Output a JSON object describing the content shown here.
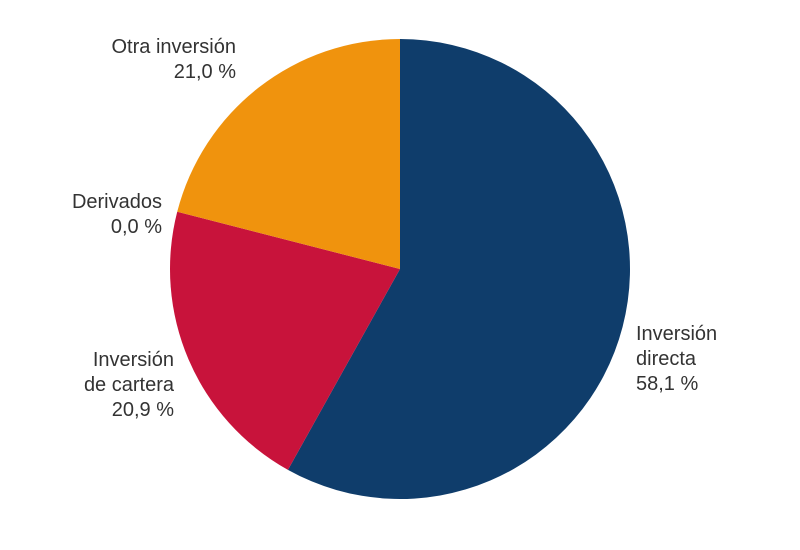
{
  "chart_data": {
    "type": "pie",
    "title": "",
    "categories": [
      "Inversión directa",
      "Inversión de cartera",
      "Derivados",
      "Otra inversión"
    ],
    "values": [
      58.1,
      20.9,
      0.0,
      21.0
    ],
    "colors": [
      "#0f3d6b",
      "#c8133b",
      "#c8133b",
      "#f0930d"
    ],
    "start_angle_deg": 0,
    "direction": "clockwise",
    "unit": "%"
  },
  "labels": {
    "directa": {
      "line1": "Inversión",
      "line2": "directa",
      "value": "58,1 %"
    },
    "cartera": {
      "line1": "Inversión",
      "line2": "de cartera",
      "value": "20,9 %"
    },
    "derivados": {
      "line1": "Derivados",
      "value": "0,0 %"
    },
    "otra": {
      "line1": "Otra inversión",
      "value": "21,0 %"
    }
  }
}
